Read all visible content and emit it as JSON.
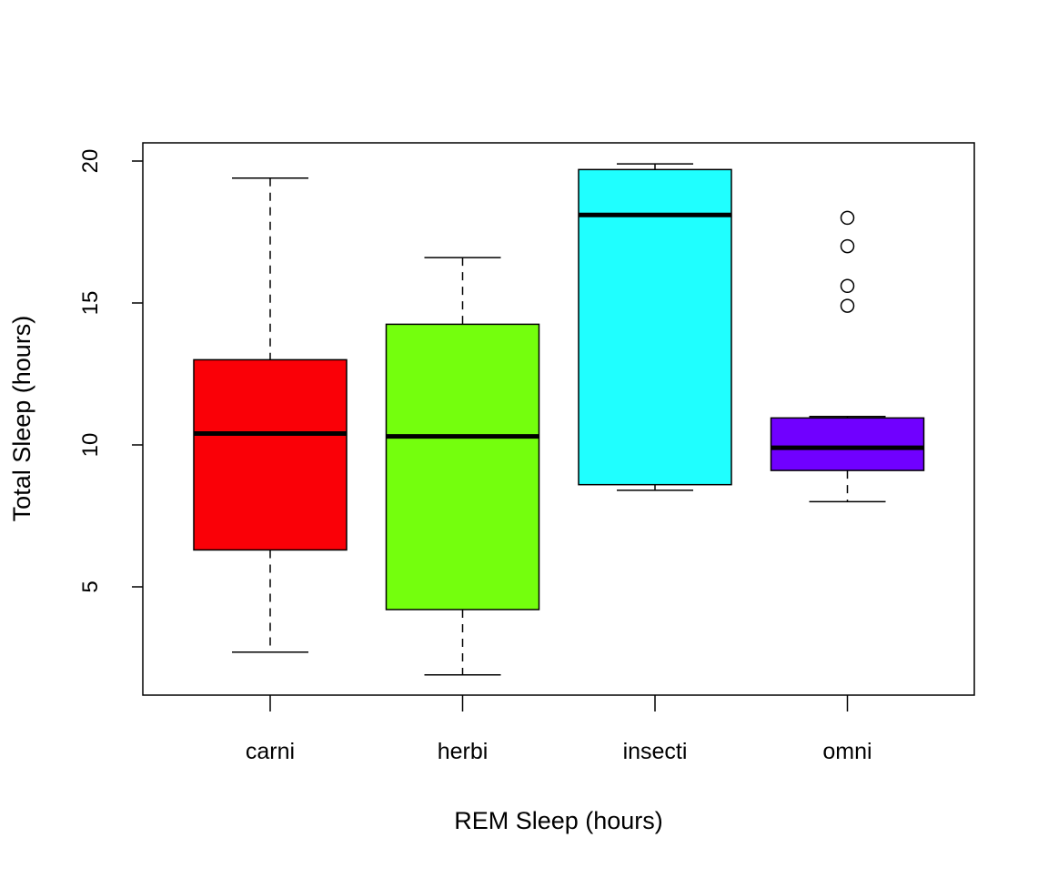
{
  "chart_data": {
    "type": "boxplot",
    "title": "",
    "xlabel": "REM Sleep (hours)",
    "ylabel": "Total Sleep (hours)",
    "ylim": [
      1.2,
      20.6
    ],
    "yticks": [
      5,
      10,
      15,
      20
    ],
    "grid": false,
    "categories": [
      "carni",
      "herbi",
      "insecti",
      "omni"
    ],
    "boxes": [
      {
        "category": "carni",
        "color": "#FA0007",
        "whisker_low": 2.7,
        "q1": 6.3,
        "median": 10.4,
        "q3": 13.0,
        "whisker_high": 19.4,
        "outliers": []
      },
      {
        "category": "herbi",
        "color": "#74FF0D",
        "whisker_low": 1.9,
        "q1": 4.2,
        "median": 10.3,
        "q3": 14.25,
        "whisker_high": 16.6,
        "outliers": []
      },
      {
        "category": "insecti",
        "color": "#1FFFFF",
        "whisker_low": 8.4,
        "q1": 8.6,
        "median": 18.1,
        "q3": 19.7,
        "whisker_high": 19.9,
        "outliers": []
      },
      {
        "category": "omni",
        "color": "#7000FF",
        "whisker_low": 8.0,
        "q1": 9.1,
        "median": 9.9,
        "q3": 10.95,
        "whisker_high": 11.0,
        "outliers": [
          14.9,
          15.6,
          17.0,
          18.0
        ]
      }
    ]
  }
}
